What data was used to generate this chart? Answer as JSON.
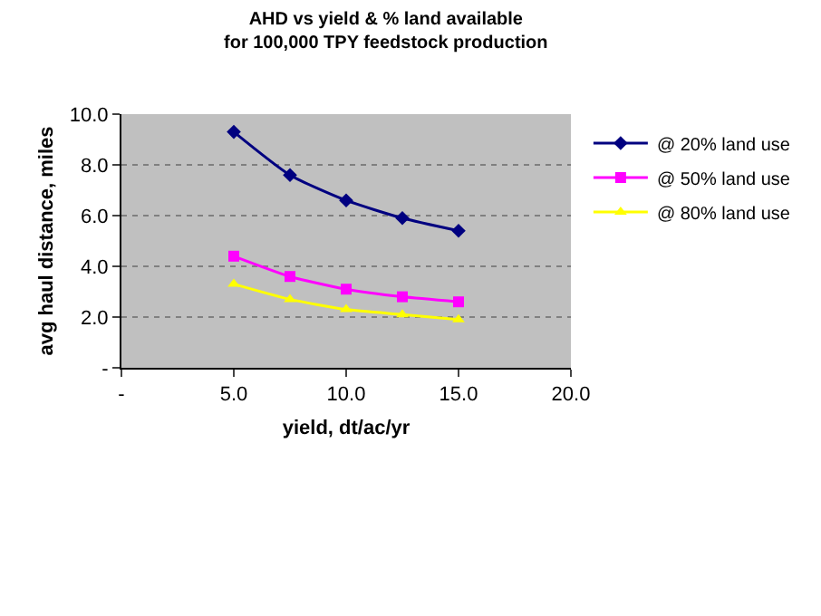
{
  "chart_data": {
    "type": "line",
    "title": "AHD vs yield & % land available\nfor 100,000 TPY feedstock production",
    "xlabel": "yield, dt/ac/yr",
    "ylabel": "avg haul distance, miles",
    "x": [
      5,
      7.5,
      10,
      12.5,
      15
    ],
    "series": [
      {
        "name": "@ 20% land use",
        "color": "#000080",
        "marker": "diamond",
        "values": [
          9.3,
          7.6,
          6.6,
          5.9,
          5.4
        ]
      },
      {
        "name": "@ 50% land use",
        "color": "#ff00ff",
        "marker": "square",
        "values": [
          4.4,
          3.6,
          3.1,
          2.8,
          2.6
        ]
      },
      {
        "name": "@ 80% land use",
        "color": "#ffff00",
        "marker": "triangle",
        "values": [
          3.3,
          2.7,
          2.3,
          2.1,
          1.9
        ]
      }
    ],
    "xlim": [
      0,
      20
    ],
    "xticks": [
      {
        "value": 0,
        "label": "-"
      },
      {
        "value": 5,
        "label": "5.0"
      },
      {
        "value": 10,
        "label": "10.0"
      },
      {
        "value": 15,
        "label": "15.0"
      },
      {
        "value": 20,
        "label": "20.0"
      }
    ],
    "ylim": [
      0,
      10
    ],
    "yticks": [
      {
        "value": 0,
        "label": "-"
      },
      {
        "value": 2,
        "label": "2.0"
      },
      {
        "value": 4,
        "label": "4.0"
      },
      {
        "value": 6,
        "label": "6.0"
      },
      {
        "value": 8,
        "label": "8.0"
      },
      {
        "value": 10,
        "label": "10.0"
      }
    ],
    "grid": "y",
    "legend": "right",
    "line_style": "solid"
  }
}
